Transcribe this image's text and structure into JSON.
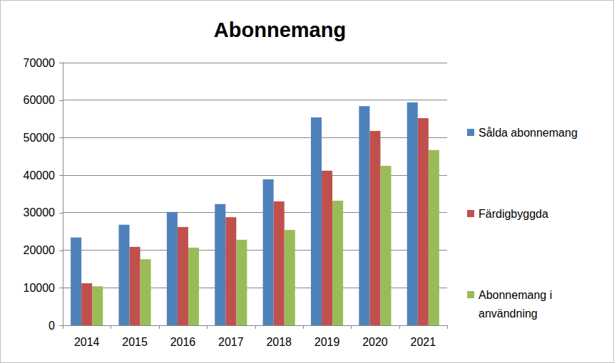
{
  "chart_data": {
    "type": "bar",
    "title": "Abonnemang",
    "categories": [
      "2014",
      "2015",
      "2016",
      "2017",
      "2018",
      "2019",
      "2020",
      "2021"
    ],
    "series": [
      {
        "name": "Sålda abonnemang",
        "color": "#4f81bd",
        "values": [
          23400,
          26800,
          30200,
          32300,
          38900,
          55400,
          58400,
          59400
        ]
      },
      {
        "name": "Färdigbyggda",
        "color": "#c0504d",
        "values": [
          11200,
          20900,
          26200,
          28800,
          33000,
          41200,
          51800,
          55200
        ]
      },
      {
        "name": "Abonnemang i användning",
        "color": "#9bbb59",
        "values": [
          10400,
          17600,
          20700,
          22800,
          25400,
          33200,
          42500,
          46700
        ]
      }
    ],
    "ylim": [
      0,
      70000
    ],
    "yticks": [
      0,
      10000,
      20000,
      30000,
      40000,
      50000,
      60000,
      70000
    ],
    "grid": true,
    "legend": "right"
  }
}
